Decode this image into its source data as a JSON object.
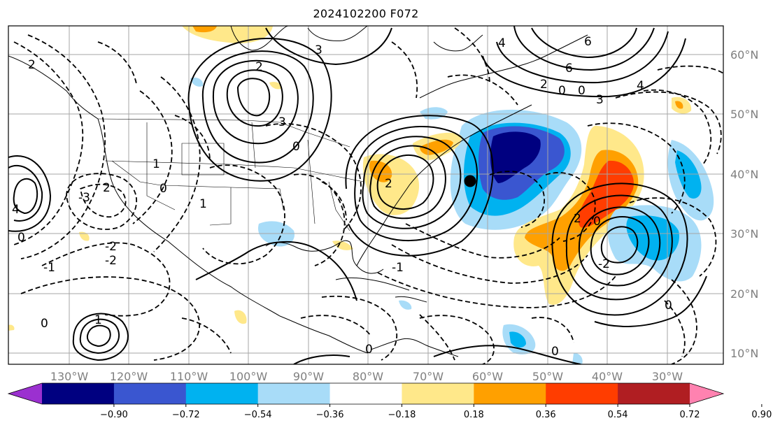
{
  "title": "2024102200 F072",
  "latitude_labels": [
    "60°N",
    "50°N",
    "40°N",
    "30°N",
    "20°N",
    "10°N"
  ],
  "longitude_labels": [
    "130°W",
    "120°W",
    "110°W",
    "100°W",
    "90°W",
    "80°W",
    "70°W",
    "60°W",
    "50°W",
    "40°W",
    "30°W"
  ],
  "colorbar": {
    "tick_labels": [
      "−0.90",
      "−0.72",
      "−0.54",
      "−0.36",
      "−0.18",
      "0.18",
      "0.36",
      "0.54",
      "0.72",
      "0.90"
    ],
    "colors": [
      "#9b30d0",
      "#000080",
      "#3a56d0",
      "#00b2f0",
      "#a8dcf8",
      "#ffffff",
      "#ffe88a",
      "#ffa000",
      "#ff3d00",
      "#b01e22",
      "#ff82b0"
    ]
  },
  "contour_labels": [
    "3",
    "2",
    "6",
    "2",
    "0",
    "0",
    "4",
    "3",
    "2",
    "0",
    "3",
    "4",
    "6",
    "4",
    "1",
    "2",
    "1",
    "0",
    "0",
    "-1",
    "-2",
    "-2",
    "-1",
    "-3",
    "2",
    "0",
    "1",
    "-2",
    "2",
    "0",
    "0",
    "0",
    "0"
  ],
  "marker": "black-dot"
}
